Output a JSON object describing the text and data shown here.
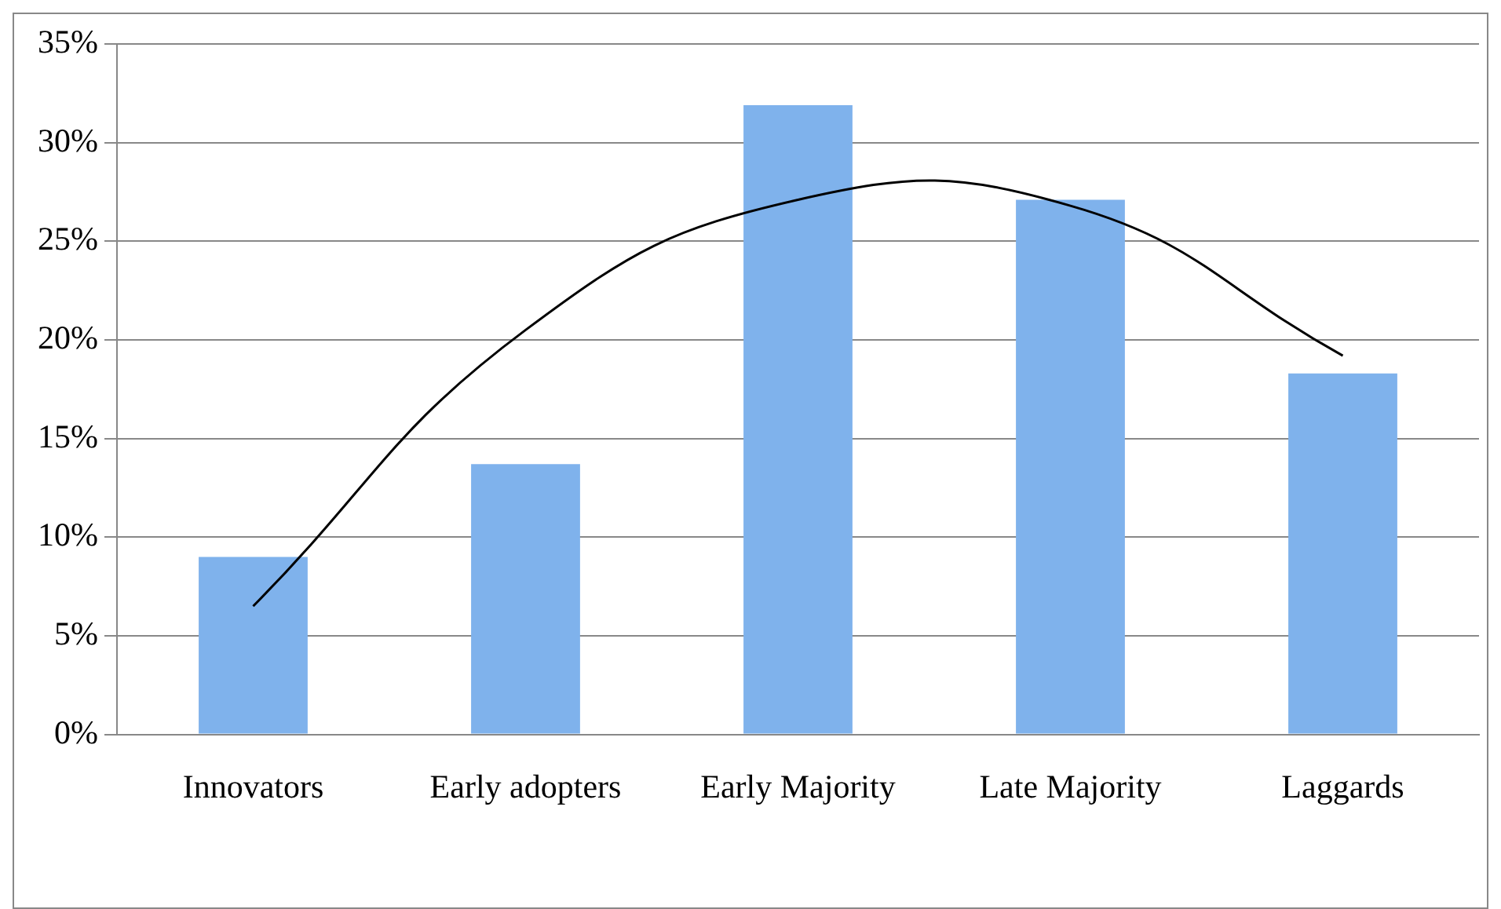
{
  "chart_data": {
    "type": "bar",
    "categories": [
      "Innovators",
      "Early adopters",
      "Early Majority",
      "Late Majority",
      "Laggards"
    ],
    "series": [
      {
        "color": "#7fb2ec",
        "values": [
          9.0,
          13.7,
          31.9,
          27.1,
          18.3
        ]
      },
      {
        "type": "line",
        "color": "#000000",
        "values": [
          6.5,
          20.5,
          27.1,
          26.8,
          19.2
        ]
      }
    ],
    "ylim": [
      0,
      35
    ],
    "yticks": [
      {
        "value": 0,
        "label": "0%"
      },
      {
        "value": 5,
        "label": "5%"
      },
      {
        "value": 10,
        "label": "10%"
      },
      {
        "value": 15,
        "label": "15%"
      },
      {
        "value": 20,
        "label": "20%"
      },
      {
        "value": 25,
        "label": "25%"
      },
      {
        "value": 30,
        "label": "30%"
      },
      {
        "value": 35,
        "label": "35%"
      }
    ],
    "grid": "y",
    "legend": false,
    "marker": "none"
  }
}
